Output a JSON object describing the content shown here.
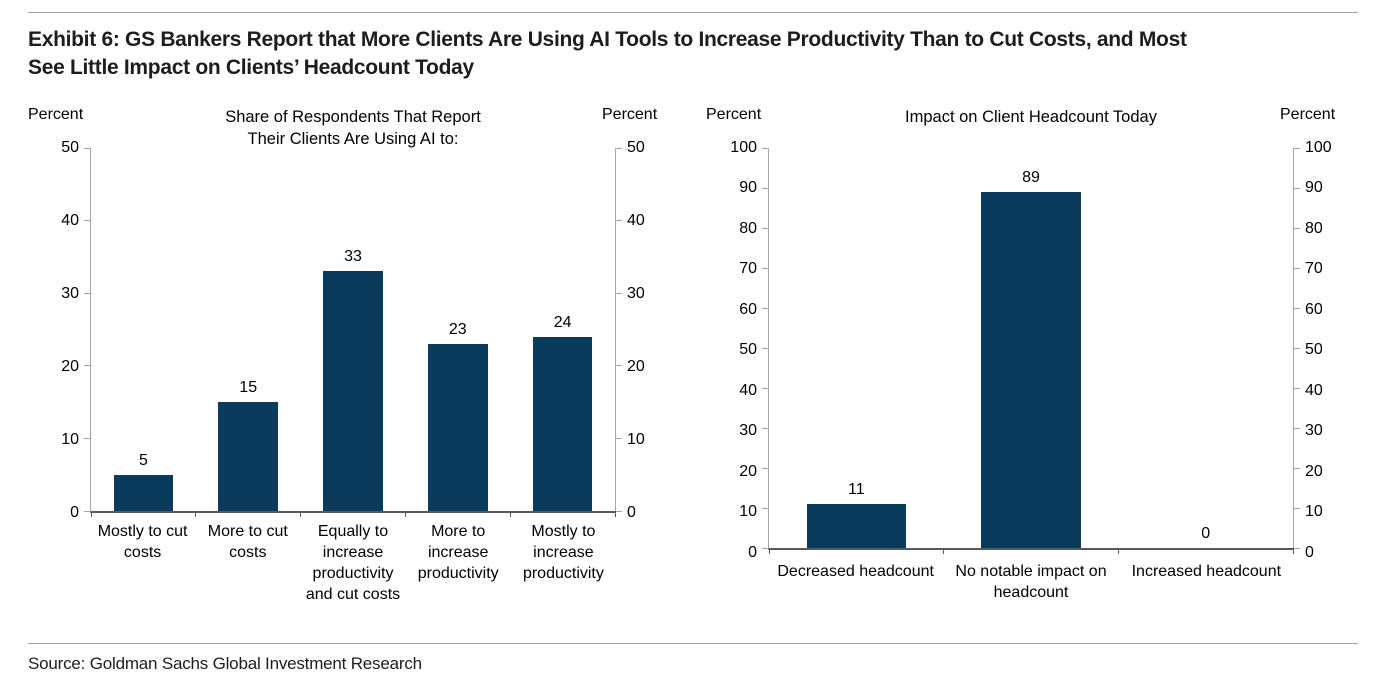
{
  "header": {
    "title": "Exhibit 6: GS Bankers Report that More Clients Are Using AI Tools to Increase Productivity Than to Cut Costs, and Most\nSee Little Impact on Clients’ Headcount Today"
  },
  "footer": {
    "source": "Source: Goldman Sachs Global Investment Research"
  },
  "colors": {
    "bar": "#0a3a5c",
    "axis_line": "#a6a6a6",
    "baseline": "#595959",
    "divider": "#a3a3a3"
  },
  "chart_data": [
    {
      "type": "bar",
      "title": "Share of Respondents That Report\nTheir Clients Are Using AI to:",
      "y_unit_left": "Percent",
      "y_unit_right": "Percent",
      "categories": [
        "Mostly to cut costs",
        "More to cut costs",
        "Equally to increase productivity and cut costs",
        "More to increase productivity",
        "Mostly to increase productivity"
      ],
      "values": [
        5,
        15,
        33,
        23,
        24
      ],
      "ylim": [
        0,
        50
      ],
      "ytick_step": 10,
      "grid": false,
      "legend": false,
      "bar_color": "#0a3a5c"
    },
    {
      "type": "bar",
      "title": "Impact on Client Headcount Today",
      "y_unit_left": "Percent",
      "y_unit_right": "Percent",
      "categories": [
        "Decreased headcount",
        "No notable impact on headcount",
        "Increased headcount"
      ],
      "values": [
        11,
        89,
        0
      ],
      "ylim": [
        0,
        100
      ],
      "ytick_step": 10,
      "grid": false,
      "legend": false,
      "bar_color": "#0a3a5c"
    }
  ]
}
